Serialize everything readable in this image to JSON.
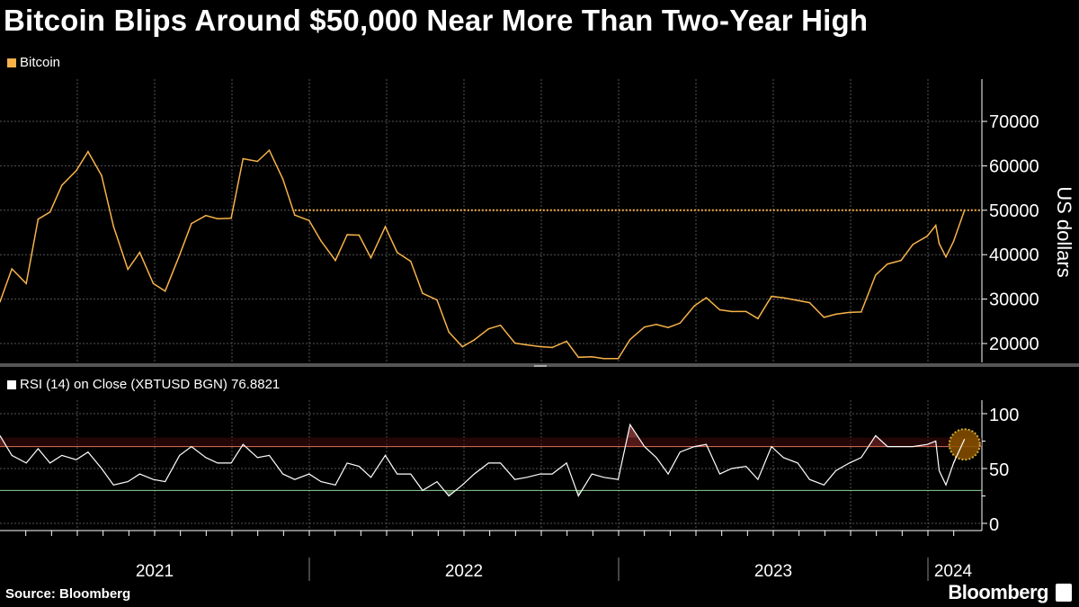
{
  "title": "Bitcoin Blips Around $50,000 Near More Than Two-Year High",
  "source": "Source: Bloomberg",
  "brand": "Bloomberg",
  "chart_data": [
    {
      "type": "line",
      "legend": "Bitcoin",
      "color": "#f7b24a",
      "ylabel": "US dollars",
      "yticks": [
        20000,
        30000,
        40000,
        50000,
        60000,
        70000
      ],
      "ylim": [
        10000,
        74000
      ],
      "xlim": [
        "2021-01-01",
        "2024-02-29"
      ],
      "xtick_labels": [
        "2021",
        "2022",
        "2023",
        "2024"
      ],
      "grid": true,
      "reference_line": {
        "value": 50000,
        "from": "2021-12-15",
        "style": "dotted",
        "color": "#f7b24a"
      },
      "series": [
        {
          "x": [
            "2021-01-01",
            "2021-01-15",
            "2021-02-01",
            "2021-02-15",
            "2021-03-01",
            "2021-03-15",
            "2021-04-01",
            "2021-04-15",
            "2021-05-01",
            "2021-05-15",
            "2021-06-01",
            "2021-06-15",
            "2021-07-01",
            "2021-07-15",
            "2021-08-01",
            "2021-08-15",
            "2021-09-01",
            "2021-09-15",
            "2021-10-01",
            "2021-10-15",
            "2021-11-01",
            "2021-11-15",
            "2021-12-01",
            "2021-12-15",
            "2022-01-01",
            "2022-01-15",
            "2022-02-01",
            "2022-02-15",
            "2022-03-01",
            "2022-03-15",
            "2022-04-01",
            "2022-04-15",
            "2022-05-01",
            "2022-05-15",
            "2022-06-01",
            "2022-06-15",
            "2022-07-01",
            "2022-07-15",
            "2022-08-01",
            "2022-08-15",
            "2022-09-01",
            "2022-09-15",
            "2022-10-01",
            "2022-10-15",
            "2022-11-01",
            "2022-11-15",
            "2022-12-01",
            "2022-12-15",
            "2023-01-01",
            "2023-01-15",
            "2023-02-01",
            "2023-02-15",
            "2023-03-01",
            "2023-03-15",
            "2023-04-01",
            "2023-04-15",
            "2023-05-01",
            "2023-05-15",
            "2023-06-01",
            "2023-06-15",
            "2023-07-01",
            "2023-07-15",
            "2023-08-01",
            "2023-08-15",
            "2023-09-01",
            "2023-09-15",
            "2023-10-01",
            "2023-10-15",
            "2023-11-01",
            "2023-11-15",
            "2023-12-01",
            "2023-12-15",
            "2024-01-01",
            "2024-01-11",
            "2024-01-15",
            "2024-01-23",
            "2024-02-01",
            "2024-02-14"
          ],
          "y": [
            29400,
            36800,
            33500,
            48000,
            49600,
            55600,
            58900,
            63200,
            57800,
            46400,
            36700,
            40500,
            33500,
            31800,
            39900,
            47000,
            48800,
            48100,
            48200,
            61600,
            61000,
            63500,
            57000,
            48900,
            47700,
            43100,
            38700,
            44500,
            44400,
            39300,
            46300,
            40500,
            38500,
            31300,
            29800,
            22600,
            19300,
            20800,
            23300,
            24100,
            20100,
            19700,
            19300,
            19100,
            20500,
            16900,
            17000,
            16600,
            16600,
            20900,
            23700,
            24300,
            23600,
            24600,
            28500,
            30300,
            27600,
            27200,
            27200,
            25600,
            30600,
            30300,
            29700,
            29200,
            25900,
            26600,
            27000,
            27100,
            35400,
            37900,
            38700,
            42300,
            44200,
            46600,
            42500,
            39500,
            43000,
            50000
          ]
        }
      ]
    },
    {
      "type": "line",
      "legend": "RSI (14)  on Close (XBTUSD BGN) 76.8821",
      "color": "#ffffff",
      "yticks": [
        0,
        50,
        100
      ],
      "ylim": [
        0,
        100
      ],
      "overbought": 70,
      "oversold": 30,
      "overbought_color": "#c0504d",
      "oversold_color": "#8fd18f",
      "last_value": 76.8821,
      "series": [
        {
          "y": [
            80,
            62,
            55,
            68,
            55,
            62,
            58,
            65,
            50,
            35,
            38,
            45,
            40,
            38,
            62,
            70,
            60,
            55,
            55,
            72,
            60,
            62,
            45,
            40,
            45,
            38,
            35,
            55,
            52,
            42,
            62,
            45,
            45,
            30,
            38,
            25,
            35,
            45,
            55,
            55,
            40,
            42,
            45,
            45,
            55,
            25,
            45,
            42,
            40,
            90,
            70,
            60,
            45,
            65,
            70,
            72,
            45,
            50,
            52,
            40,
            70,
            60,
            55,
            40,
            35,
            48,
            55,
            60,
            80,
            70,
            70,
            70,
            72,
            75,
            48,
            35,
            55,
            76.8821
          ]
        }
      ]
    }
  ]
}
